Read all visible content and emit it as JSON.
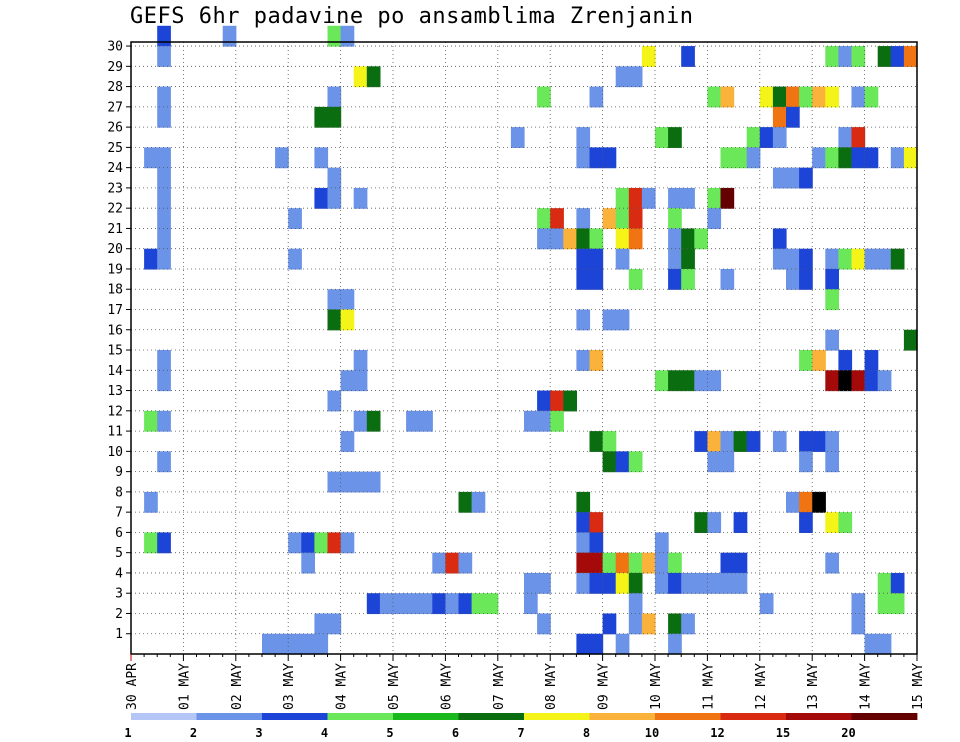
{
  "chart_data": {
    "type": "heatmap",
    "title": "GEFS 6hr padavine po ansamblima Zrenjanin",
    "x_ticks": [
      "30 APR",
      "01 MAY",
      "02 MAY",
      "03 MAY",
      "04 MAY",
      "05 MAY",
      "06 MAY",
      "07 MAY",
      "08 MAY",
      "09 MAY",
      "10 MAY",
      "11 MAY",
      "12 MAY",
      "13 MAY",
      "14 MAY",
      "15 MAY"
    ],
    "y_ticks": [
      1,
      2,
      3,
      4,
      5,
      6,
      7,
      8,
      9,
      10,
      11,
      12,
      13,
      14,
      15,
      16,
      17,
      18,
      19,
      20,
      21,
      22,
      23,
      24,
      25,
      26,
      27,
      28,
      29,
      30
    ],
    "x_steps_total": 60,
    "y_range": [
      0,
      30
    ],
    "grid": true,
    "colorbar": {
      "labels": [
        "1",
        "2",
        "3",
        "4",
        "5",
        "6",
        "7",
        "8",
        "10",
        "12",
        "15",
        "20"
      ],
      "colors": [
        "#b4c6f5",
        "#6b93e8",
        "#1c45d8",
        "#6ae85a",
        "#19b81c",
        "#0a6e10",
        "#f4f418",
        "#fbb23a",
        "#f17412",
        "#d92a12",
        "#a50a0a",
        "#640000"
      ]
    },
    "cells": [
      [
        2,
        30,
        2
      ],
      [
        7,
        30,
        1
      ],
      [
        15,
        30,
        3
      ],
      [
        16,
        30,
        1
      ],
      [
        2,
        29,
        1
      ],
      [
        39,
        29,
        6
      ],
      [
        42,
        29,
        2
      ],
      [
        53,
        29,
        3
      ],
      [
        54,
        29,
        1
      ],
      [
        55,
        29,
        3
      ],
      [
        57,
        29,
        5
      ],
      [
        58,
        29,
        2
      ],
      [
        59,
        29,
        8
      ],
      [
        17,
        28,
        6
      ],
      [
        18,
        28,
        5
      ],
      [
        37,
        28,
        1
      ],
      [
        38,
        28,
        1
      ],
      [
        2,
        27,
        1
      ],
      [
        15,
        27,
        1
      ],
      [
        31,
        27,
        3
      ],
      [
        35,
        27,
        1
      ],
      [
        44,
        27,
        3
      ],
      [
        45,
        27,
        7
      ],
      [
        48,
        27,
        6
      ],
      [
        49,
        27,
        5
      ],
      [
        50,
        27,
        8
      ],
      [
        51,
        27,
        3
      ],
      [
        52,
        27,
        7
      ],
      [
        53,
        27,
        6
      ],
      [
        55,
        27,
        1
      ],
      [
        56,
        27,
        3
      ],
      [
        2,
        26,
        1
      ],
      [
        14,
        26,
        5
      ],
      [
        15,
        26,
        5
      ],
      [
        49,
        26,
        8
      ],
      [
        50,
        26,
        2
      ],
      [
        29,
        25,
        1
      ],
      [
        34,
        25,
        1
      ],
      [
        40,
        25,
        3
      ],
      [
        41,
        25,
        5
      ],
      [
        47,
        25,
        3
      ],
      [
        48,
        25,
        2
      ],
      [
        49,
        25,
        1
      ],
      [
        54,
        25,
        1
      ],
      [
        55,
        25,
        9
      ],
      [
        1,
        24,
        1
      ],
      [
        2,
        24,
        1
      ],
      [
        11,
        24,
        1
      ],
      [
        14,
        24,
        1
      ],
      [
        34,
        24,
        1
      ],
      [
        35,
        24,
        2
      ],
      [
        36,
        24,
        2
      ],
      [
        45,
        24,
        3
      ],
      [
        46,
        24,
        3
      ],
      [
        47,
        24,
        1
      ],
      [
        52,
        24,
        1
      ],
      [
        53,
        24,
        3
      ],
      [
        54,
        24,
        5
      ],
      [
        55,
        24,
        2
      ],
      [
        56,
        24,
        2
      ],
      [
        58,
        24,
        1
      ],
      [
        59,
        24,
        6
      ],
      [
        2,
        23,
        1
      ],
      [
        15,
        23,
        1
      ],
      [
        49,
        23,
        1
      ],
      [
        50,
        23,
        1
      ],
      [
        51,
        23,
        2
      ],
      [
        2,
        22,
        1
      ],
      [
        14,
        22,
        2
      ],
      [
        15,
        22,
        1
      ],
      [
        17,
        22,
        1
      ],
      [
        37,
        22,
        3
      ],
      [
        38,
        22,
        9
      ],
      [
        39,
        22,
        1
      ],
      [
        41,
        22,
        1
      ],
      [
        42,
        22,
        1
      ],
      [
        44,
        22,
        3
      ],
      [
        45,
        22,
        11
      ],
      [
        2,
        21,
        1
      ],
      [
        12,
        21,
        1
      ],
      [
        31,
        21,
        3
      ],
      [
        32,
        21,
        9
      ],
      [
        34,
        21,
        1
      ],
      [
        36,
        21,
        7
      ],
      [
        37,
        21,
        3
      ],
      [
        38,
        21,
        9
      ],
      [
        41,
        21,
        3
      ],
      [
        44,
        21,
        1
      ],
      [
        2,
        20,
        1
      ],
      [
        31,
        20,
        1
      ],
      [
        32,
        20,
        1
      ],
      [
        33,
        20,
        7
      ],
      [
        34,
        20,
        5
      ],
      [
        35,
        20,
        3
      ],
      [
        37,
        20,
        6
      ],
      [
        38,
        20,
        8
      ],
      [
        41,
        20,
        1
      ],
      [
        42,
        20,
        5
      ],
      [
        43,
        20,
        3
      ],
      [
        49,
        20,
        2
      ],
      [
        1,
        19,
        2
      ],
      [
        2,
        19,
        1
      ],
      [
        12,
        19,
        1
      ],
      [
        34,
        19,
        2
      ],
      [
        35,
        19,
        2
      ],
      [
        37,
        19,
        1
      ],
      [
        41,
        19,
        1
      ],
      [
        42,
        19,
        5
      ],
      [
        49,
        19,
        1
      ],
      [
        50,
        19,
        1
      ],
      [
        51,
        19,
        2
      ],
      [
        53,
        19,
        1
      ],
      [
        54,
        19,
        3
      ],
      [
        55,
        19,
        6
      ],
      [
        56,
        19,
        1
      ],
      [
        57,
        19,
        1
      ],
      [
        58,
        19,
        5
      ],
      [
        34,
        18,
        2
      ],
      [
        35,
        18,
        2
      ],
      [
        38,
        18,
        3
      ],
      [
        41,
        18,
        2
      ],
      [
        42,
        18,
        3
      ],
      [
        45,
        18,
        1
      ],
      [
        50,
        18,
        1
      ],
      [
        51,
        18,
        2
      ],
      [
        53,
        18,
        2
      ],
      [
        15,
        17,
        1
      ],
      [
        16,
        17,
        1
      ],
      [
        53,
        17,
        3
      ],
      [
        15,
        16,
        5
      ],
      [
        16,
        16,
        6
      ],
      [
        34,
        16,
        1
      ],
      [
        36,
        16,
        1
      ],
      [
        37,
        16,
        1
      ],
      [
        53,
        15,
        1
      ],
      [
        59,
        15,
        5
      ],
      [
        2,
        14,
        1
      ],
      [
        17,
        14,
        1
      ],
      [
        34,
        14,
        1
      ],
      [
        35,
        14,
        7
      ],
      [
        51,
        14,
        3
      ],
      [
        52,
        14,
        7
      ],
      [
        54,
        14,
        2
      ],
      [
        56,
        14,
        2
      ],
      [
        2,
        13,
        1
      ],
      [
        16,
        13,
        1
      ],
      [
        17,
        13,
        1
      ],
      [
        40,
        13,
        3
      ],
      [
        41,
        13,
        5
      ],
      [
        42,
        13,
        5
      ],
      [
        43,
        13,
        1
      ],
      [
        44,
        13,
        1
      ],
      [
        53,
        13,
        10
      ],
      [
        54,
        13,
        12
      ],
      [
        55,
        13,
        10
      ],
      [
        56,
        13,
        2
      ],
      [
        57,
        13,
        1
      ],
      [
        15,
        12,
        1
      ],
      [
        31,
        12,
        2
      ],
      [
        32,
        12,
        9
      ],
      [
        33,
        12,
        5
      ],
      [
        1,
        11,
        3
      ],
      [
        2,
        11,
        1
      ],
      [
        17,
        11,
        1
      ],
      [
        18,
        11,
        5
      ],
      [
        21,
        11,
        1
      ],
      [
        22,
        11,
        1
      ],
      [
        30,
        11,
        1
      ],
      [
        31,
        11,
        1
      ],
      [
        32,
        11,
        3
      ],
      [
        16,
        10,
        1
      ],
      [
        35,
        10,
        5
      ],
      [
        36,
        10,
        3
      ],
      [
        43,
        10,
        2
      ],
      [
        44,
        10,
        7
      ],
      [
        45,
        10,
        1
      ],
      [
        46,
        10,
        5
      ],
      [
        47,
        10,
        2
      ],
      [
        49,
        10,
        1
      ],
      [
        51,
        10,
        2
      ],
      [
        52,
        10,
        2
      ],
      [
        53,
        10,
        1
      ],
      [
        2,
        9,
        1
      ],
      [
        36,
        9,
        5
      ],
      [
        37,
        9,
        2
      ],
      [
        38,
        9,
        3
      ],
      [
        44,
        9,
        1
      ],
      [
        45,
        9,
        1
      ],
      [
        51,
        9,
        1
      ],
      [
        53,
        9,
        1
      ],
      [
        15,
        8,
        1
      ],
      [
        16,
        8,
        1
      ],
      [
        17,
        8,
        1
      ],
      [
        18,
        8,
        1
      ],
      [
        1,
        7,
        1
      ],
      [
        25,
        7,
        5
      ],
      [
        26,
        7,
        1
      ],
      [
        34,
        7,
        5
      ],
      [
        50,
        7,
        1
      ],
      [
        51,
        7,
        8
      ],
      [
        52,
        7,
        12
      ],
      [
        34,
        6,
        2
      ],
      [
        35,
        6,
        9
      ],
      [
        43,
        6,
        5
      ],
      [
        44,
        6,
        1
      ],
      [
        46,
        6,
        2
      ],
      [
        51,
        6,
        2
      ],
      [
        53,
        6,
        6
      ],
      [
        54,
        6,
        3
      ],
      [
        1,
        5,
        3
      ],
      [
        2,
        5,
        2
      ],
      [
        12,
        5,
        1
      ],
      [
        13,
        5,
        2
      ],
      [
        14,
        5,
        3
      ],
      [
        15,
        5,
        9
      ],
      [
        16,
        5,
        1
      ],
      [
        34,
        5,
        1
      ],
      [
        35,
        5,
        2
      ],
      [
        40,
        5,
        1
      ],
      [
        13,
        4,
        1
      ],
      [
        23,
        4,
        1
      ],
      [
        24,
        4,
        9
      ],
      [
        25,
        4,
        1
      ],
      [
        34,
        4,
        10
      ],
      [
        35,
        4,
        10
      ],
      [
        36,
        4,
        3
      ],
      [
        37,
        4,
        8
      ],
      [
        38,
        4,
        3
      ],
      [
        39,
        4,
        7
      ],
      [
        40,
        4,
        1
      ],
      [
        41,
        4,
        3
      ],
      [
        45,
        4,
        2
      ],
      [
        46,
        4,
        2
      ],
      [
        53,
        4,
        1
      ],
      [
        30,
        3,
        1
      ],
      [
        31,
        3,
        1
      ],
      [
        34,
        3,
        1
      ],
      [
        35,
        3,
        2
      ],
      [
        36,
        3,
        2
      ],
      [
        37,
        3,
        6
      ],
      [
        38,
        3,
        5
      ],
      [
        40,
        3,
        1
      ],
      [
        41,
        3,
        2
      ],
      [
        42,
        3,
        1
      ],
      [
        43,
        3,
        1
      ],
      [
        44,
        3,
        1
      ],
      [
        45,
        3,
        1
      ],
      [
        46,
        3,
        1
      ],
      [
        57,
        3,
        3
      ],
      [
        58,
        3,
        2
      ],
      [
        18,
        2,
        2
      ],
      [
        19,
        2,
        1
      ],
      [
        20,
        2,
        1
      ],
      [
        21,
        2,
        1
      ],
      [
        22,
        2,
        1
      ],
      [
        23,
        2,
        2
      ],
      [
        24,
        2,
        1
      ],
      [
        25,
        2,
        2
      ],
      [
        26,
        2,
        3
      ],
      [
        27,
        2,
        3
      ],
      [
        30,
        2,
        1
      ],
      [
        38,
        2,
        1
      ],
      [
        48,
        2,
        1
      ],
      [
        55,
        2,
        1
      ],
      [
        57,
        2,
        3
      ],
      [
        58,
        2,
        3
      ],
      [
        14,
        1,
        1
      ],
      [
        15,
        1,
        1
      ],
      [
        31,
        1,
        1
      ],
      [
        36,
        1,
        2
      ],
      [
        38,
        1,
        1
      ],
      [
        39,
        1,
        7
      ],
      [
        41,
        1,
        5
      ],
      [
        42,
        1,
        1
      ],
      [
        55,
        1,
        1
      ],
      [
        10,
        0,
        1
      ],
      [
        11,
        0,
        1
      ],
      [
        12,
        0,
        1
      ],
      [
        13,
        0,
        1
      ],
      [
        14,
        0,
        1
      ],
      [
        34,
        0,
        2
      ],
      [
        35,
        0,
        2
      ],
      [
        37,
        0,
        1
      ],
      [
        41,
        0,
        1
      ],
      [
        56,
        0,
        1
      ],
      [
        57,
        0,
        1
      ]
    ]
  }
}
